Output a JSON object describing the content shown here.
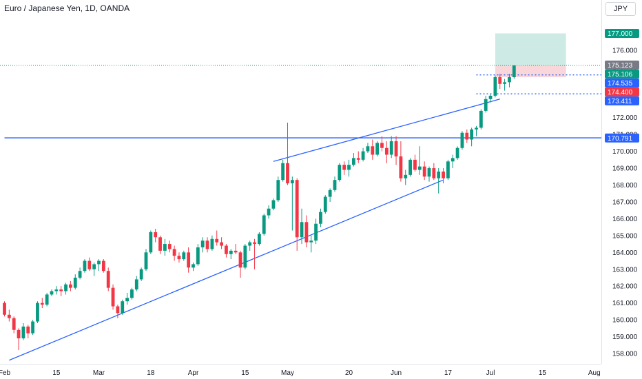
{
  "header": {
    "title": "Euro / Japanese Yen, 1D, OANDA",
    "currency": "JPY"
  },
  "colors": {
    "up": "#089981",
    "down": "#f23645",
    "line": "#2962ff",
    "blue_tag": "#2962ff",
    "red_tag": "#f23645",
    "green_tag": "#089981",
    "gray_tag": "#787b86",
    "target_zone": "#cdebe4",
    "stop_zone": "#f8d6da"
  },
  "chart_data": {
    "type": "candlestick",
    "title": "Euro / Japanese Yen, 1D, OANDA",
    "y_axis": {
      "position": "right",
      "range": [
        157.6,
        178.0
      ],
      "ticks": [
        "158.000",
        "159.000",
        "160.000",
        "161.000",
        "162.000",
        "163.000",
        "164.000",
        "165.000",
        "166.000",
        "167.000",
        "168.000",
        "169.000",
        "170.000",
        "171.000",
        "172.000",
        "173.000",
        "174.000",
        "175.000",
        "176.000"
      ]
    },
    "x_axis": {
      "labels": [
        "Feb",
        "15",
        "Mar",
        "18",
        "Apr",
        "15",
        "May",
        "20",
        "Jun",
        "17",
        "Jul",
        "15",
        "Aug"
      ],
      "label_index": [
        0,
        11,
        20,
        31,
        40,
        51,
        60,
        73,
        83,
        94,
        103,
        114,
        125
      ]
    },
    "candles": [
      [
        161.0,
        161.1,
        160.2,
        160.3
      ],
      [
        160.3,
        160.6,
        159.9,
        160.1
      ],
      [
        160.1,
        160.2,
        159.2,
        159.4
      ],
      [
        159.4,
        159.5,
        158.2,
        158.9
      ],
      [
        158.9,
        159.8,
        158.8,
        159.6
      ],
      [
        159.6,
        159.7,
        158.9,
        159.2
      ],
      [
        159.2,
        160.0,
        159.1,
        159.9
      ],
      [
        159.9,
        161.1,
        159.8,
        161.0
      ],
      [
        161.0,
        161.3,
        160.7,
        160.9
      ],
      [
        160.9,
        161.6,
        160.8,
        161.5
      ],
      [
        161.5,
        161.8,
        161.4,
        161.7
      ],
      [
        161.7,
        162.0,
        161.5,
        161.8
      ],
      [
        161.8,
        162.0,
        161.4,
        161.7
      ],
      [
        161.7,
        162.2,
        161.5,
        162.1
      ],
      [
        162.1,
        162.3,
        161.7,
        161.9
      ],
      [
        161.9,
        162.7,
        161.8,
        162.5
      ],
      [
        162.5,
        163.1,
        162.4,
        162.9
      ],
      [
        162.9,
        163.6,
        162.8,
        163.5
      ],
      [
        163.5,
        163.7,
        162.9,
        163.0
      ],
      [
        163.0,
        163.4,
        162.6,
        163.3
      ],
      [
        163.3,
        163.6,
        162.9,
        163.5
      ],
      [
        163.5,
        163.6,
        162.8,
        162.9
      ],
      [
        162.9,
        163.1,
        161.7,
        161.9
      ],
      [
        161.9,
        162.1,
        160.6,
        160.8
      ],
      [
        160.8,
        160.9,
        160.1,
        160.4
      ],
      [
        160.4,
        161.2,
        160.3,
        161.1
      ],
      [
        161.1,
        161.6,
        160.9,
        161.3
      ],
      [
        161.3,
        161.9,
        161.2,
        161.8
      ],
      [
        161.8,
        162.6,
        161.7,
        162.4
      ],
      [
        162.4,
        163.1,
        162.3,
        163.0
      ],
      [
        163.0,
        164.2,
        162.9,
        164.0
      ],
      [
        164.0,
        165.3,
        163.9,
        165.2
      ],
      [
        165.2,
        165.4,
        164.6,
        164.9
      ],
      [
        164.9,
        165.0,
        163.9,
        164.1
      ],
      [
        164.1,
        164.8,
        163.8,
        164.5
      ],
      [
        164.5,
        164.7,
        164.0,
        164.2
      ],
      [
        164.2,
        164.4,
        163.5,
        163.8
      ],
      [
        163.8,
        164.0,
        163.4,
        163.6
      ],
      [
        163.6,
        164.1,
        163.5,
        164.0
      ],
      [
        164.0,
        164.3,
        162.8,
        163.1
      ],
      [
        163.1,
        163.4,
        162.9,
        163.3
      ],
      [
        163.3,
        164.5,
        163.2,
        164.3
      ],
      [
        164.3,
        164.9,
        164.0,
        164.7
      ],
      [
        164.7,
        164.9,
        164.0,
        164.2
      ],
      [
        164.2,
        165.0,
        164.1,
        164.8
      ],
      [
        164.8,
        165.3,
        164.4,
        164.6
      ],
      [
        164.6,
        164.9,
        164.2,
        164.4
      ],
      [
        164.4,
        164.5,
        163.7,
        163.9
      ],
      [
        163.9,
        164.2,
        163.6,
        164.1
      ],
      [
        164.1,
        164.5,
        163.9,
        164.0
      ],
      [
        164.0,
        164.1,
        162.5,
        163.1
      ],
      [
        163.1,
        164.5,
        163.0,
        164.4
      ],
      [
        164.4,
        164.7,
        164.1,
        164.6
      ],
      [
        164.6,
        164.8,
        163.0,
        164.5
      ],
      [
        164.5,
        165.2,
        164.4,
        165.1
      ],
      [
        165.1,
        166.3,
        165.0,
        166.2
      ],
      [
        166.2,
        166.8,
        166.0,
        166.6
      ],
      [
        166.6,
        167.2,
        166.5,
        167.1
      ],
      [
        167.1,
        168.5,
        167.0,
        168.3
      ],
      [
        168.3,
        169.5,
        168.2,
        169.3
      ],
      [
        169.3,
        171.7,
        168.0,
        168.1
      ],
      [
        168.1,
        168.5,
        165.3,
        168.3
      ],
      [
        168.3,
        168.4,
        164.1,
        164.9
      ],
      [
        164.9,
        166.6,
        164.5,
        165.8
      ],
      [
        165.8,
        166.2,
        164.3,
        164.6
      ],
      [
        164.6,
        165.0,
        164.0,
        164.7
      ],
      [
        164.7,
        166.0,
        164.5,
        165.7
      ],
      [
        165.7,
        166.6,
        165.5,
        166.4
      ],
      [
        166.4,
        167.4,
        166.3,
        167.3
      ],
      [
        167.3,
        167.8,
        167.0,
        167.7
      ],
      [
        167.7,
        168.5,
        167.6,
        168.3
      ],
      [
        168.3,
        169.3,
        168.2,
        169.2
      ],
      [
        169.2,
        169.4,
        168.6,
        168.9
      ],
      [
        168.9,
        169.5,
        168.5,
        169.2
      ],
      [
        169.2,
        169.9,
        169.1,
        169.6
      ],
      [
        169.6,
        170.0,
        169.3,
        169.5
      ],
      [
        169.5,
        170.2,
        169.4,
        170.0
      ],
      [
        170.0,
        170.5,
        169.9,
        170.3
      ],
      [
        170.3,
        170.7,
        169.5,
        169.8
      ],
      [
        169.8,
        170.6,
        169.7,
        170.5
      ],
      [
        170.5,
        170.9,
        170.0,
        170.2
      ],
      [
        170.2,
        170.6,
        169.3,
        169.8
      ],
      [
        169.8,
        170.9,
        169.6,
        170.6
      ],
      [
        170.6,
        170.9,
        169.2,
        169.7
      ],
      [
        169.7,
        170.6,
        168.2,
        168.4
      ],
      [
        168.4,
        168.9,
        168.0,
        168.6
      ],
      [
        168.6,
        169.6,
        168.5,
        169.5
      ],
      [
        169.5,
        169.8,
        168.8,
        168.9
      ],
      [
        168.9,
        170.3,
        168.6,
        169.1
      ],
      [
        169.1,
        169.4,
        168.3,
        168.5
      ],
      [
        168.5,
        169.1,
        168.2,
        169.0
      ],
      [
        169.0,
        169.3,
        168.3,
        168.4
      ],
      [
        168.4,
        169.0,
        167.5,
        168.8
      ],
      [
        168.8,
        169.0,
        168.1,
        168.4
      ],
      [
        168.4,
        169.5,
        168.3,
        169.4
      ],
      [
        169.4,
        169.8,
        169.0,
        169.6
      ],
      [
        169.6,
        170.3,
        169.5,
        170.2
      ],
      [
        170.2,
        171.2,
        170.1,
        171.1
      ],
      [
        171.1,
        171.3,
        170.5,
        170.7
      ],
      [
        170.7,
        171.4,
        170.3,
        171.3
      ],
      [
        171.3,
        171.5,
        170.9,
        171.4
      ],
      [
        171.4,
        172.5,
        171.3,
        172.4
      ],
      [
        172.4,
        173.3,
        172.3,
        173.1
      ],
      [
        173.1,
        173.4,
        172.9,
        173.3
      ],
      [
        173.3,
        174.5,
        173.2,
        174.4
      ],
      [
        174.4,
        174.6,
        173.7,
        174.0
      ],
      [
        174.0,
        174.3,
        173.6,
        174.1
      ],
      [
        174.1,
        174.6,
        173.8,
        174.4
      ],
      [
        174.4,
        175.1,
        174.3,
        175.1
      ]
    ],
    "trendlines": [
      {
        "from": [
          1,
          157.6
        ],
        "to": [
          93,
          168.3
        ]
      },
      {
        "from": [
          57,
          169.4
        ],
        "to": [
          105,
          173.1
        ]
      }
    ],
    "horizontal_lines": [
      {
        "price": 170.8,
        "style": "solid",
        "from": 0
      },
      {
        "price": 175.106,
        "style": "dotted-green",
        "from": 0
      },
      {
        "price": 174.535,
        "style": "dotted",
        "from": 100
      },
      {
        "price": 173.411,
        "style": "dotted",
        "from": 100
      }
    ],
    "position": {
      "from": 104,
      "to": 119,
      "entry": 175.106,
      "target": 177.0,
      "stop": 174.4
    },
    "price_tags": [
      {
        "price": 177.0,
        "label": "177.000",
        "color": "#089981"
      },
      {
        "price": 175.123,
        "label": "175.123",
        "color": "#787b86"
      },
      {
        "price": 175.106,
        "label": "175.106",
        "color": "#089981"
      },
      {
        "price": 174.535,
        "label": "174.535",
        "color": "#2962ff"
      },
      {
        "price": 174.4,
        "label": "174.400",
        "color": "#f23645"
      },
      {
        "price": 173.411,
        "label": "173.411",
        "color": "#2962ff"
      },
      {
        "price": 170.791,
        "label": "170.791",
        "color": "#2962ff"
      }
    ]
  }
}
